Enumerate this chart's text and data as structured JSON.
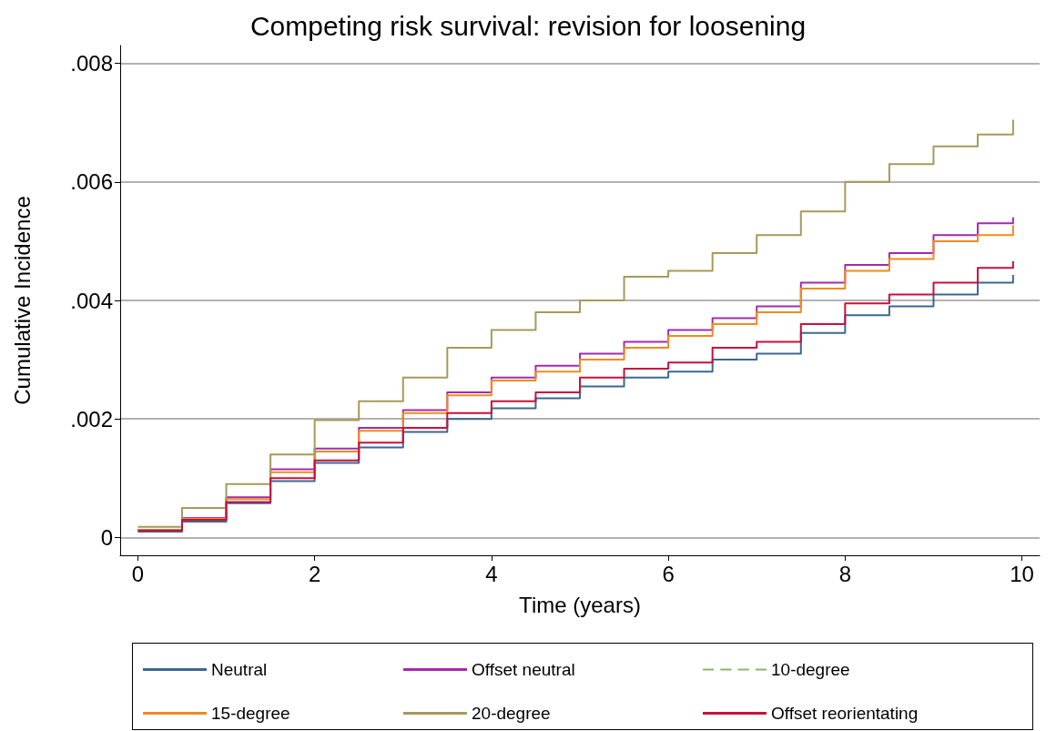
{
  "chart_data": {
    "type": "step",
    "title": "Competing risk survival: revision for loosening",
    "xlabel": "Time (years)",
    "ylabel": "Cumulative Incidence",
    "x": [
      0,
      0.5,
      1,
      1.5,
      2,
      2.5,
      3,
      3.5,
      4,
      4.5,
      5,
      5.5,
      6,
      6.5,
      7,
      7.5,
      8,
      8.5,
      9,
      9.5,
      9.9
    ],
    "series": [
      {
        "name": "Neutral",
        "color": "#3b6894",
        "values": [
          0.0001,
          0.00027,
          0.00058,
          0.00095,
          0.00126,
          0.00152,
          0.00178,
          0.002,
          0.00218,
          0.00235,
          0.00255,
          0.0027,
          0.0028,
          0.003,
          0.0031,
          0.00345,
          0.00375,
          0.0039,
          0.0041,
          0.0043,
          0.00443
        ]
      },
      {
        "name": "Offset neutral",
        "color": "#a42aae",
        "values": [
          0.00013,
          0.00033,
          0.00068,
          0.00115,
          0.0015,
          0.00185,
          0.00215,
          0.00245,
          0.0027,
          0.0029,
          0.0031,
          0.0033,
          0.0035,
          0.0037,
          0.0039,
          0.0043,
          0.0046,
          0.0048,
          0.0051,
          0.0053,
          0.0054
        ]
      },
      {
        "name": "10-degree",
        "color": "#8fb36a",
        "line_style": "dashed",
        "values": [
          null,
          null,
          null,
          null,
          null,
          null,
          null,
          null,
          null,
          null,
          null,
          null,
          null,
          null,
          null,
          null,
          null,
          null,
          null,
          null,
          null
        ]
      },
      {
        "name": "15-degree",
        "color": "#f28a1c",
        "values": [
          0.00013,
          0.00032,
          0.00065,
          0.0011,
          0.00145,
          0.0018,
          0.0021,
          0.0024,
          0.00265,
          0.0028,
          0.003,
          0.0032,
          0.0034,
          0.0036,
          0.0038,
          0.0042,
          0.0045,
          0.0047,
          0.005,
          0.0051,
          0.00527
        ]
      },
      {
        "name": "20-degree",
        "color": "#a8995a",
        "values": [
          0.00018,
          0.0005,
          0.0009,
          0.0014,
          0.00198,
          0.0023,
          0.0027,
          0.0032,
          0.0035,
          0.0038,
          0.004,
          0.0044,
          0.0045,
          0.0048,
          0.0051,
          0.0055,
          0.006,
          0.0063,
          0.0066,
          0.0068,
          0.00705
        ]
      },
      {
        "name": "Offset reorientating",
        "color": "#c8103c",
        "values": [
          0.00012,
          0.0003,
          0.0006,
          0.001,
          0.0013,
          0.0016,
          0.00185,
          0.0021,
          0.0023,
          0.00245,
          0.0027,
          0.00285,
          0.00295,
          0.0032,
          0.0033,
          0.0036,
          0.00395,
          0.0041,
          0.0043,
          0.00455,
          0.00466
        ]
      }
    ],
    "xlim": [
      -0.2,
      10.2
    ],
    "xticks": [
      0,
      2,
      4,
      6,
      8,
      10
    ],
    "ylim": [
      -0.0003,
      0.0083
    ],
    "yticks": [
      0,
      {
        "value": 0.002,
        "label": ".002"
      },
      {
        "value": 0.004,
        "label": ".004"
      },
      {
        "value": 0.006,
        "label": ".006"
      },
      {
        "value": 0.008,
        "label": ".008"
      }
    ],
    "grid": "y",
    "legend": "bottom",
    "marker": "none",
    "line_style": "solid"
  }
}
